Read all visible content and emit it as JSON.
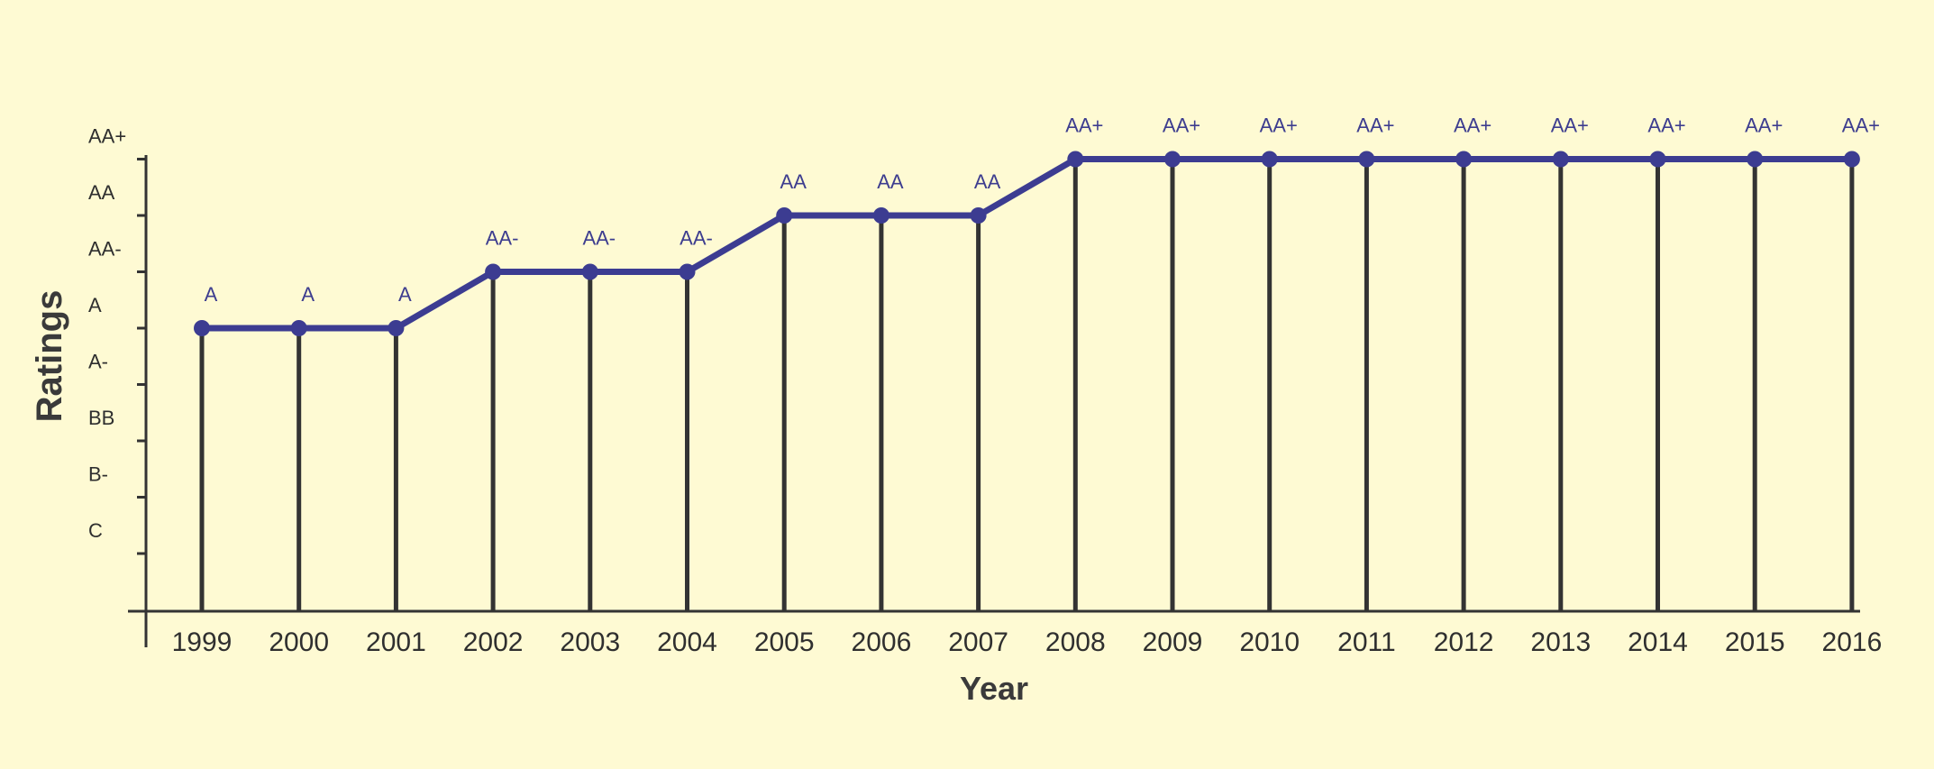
{
  "colors": {
    "background": "#fefad3",
    "series": "#3c3c91",
    "axis": "#333333",
    "stem": "#333333",
    "tick_text": "#2f2f2f",
    "data_label_text": "#3d3d8f"
  },
  "chart_data": {
    "type": "line",
    "title": "",
    "xlabel": "Year",
    "ylabel": "Ratings",
    "y_categories": [
      "C",
      "B-",
      "BB",
      "A-",
      "A",
      "AA-",
      "AA",
      "AA+"
    ],
    "x": [
      "1999",
      "2000",
      "2001",
      "2002",
      "2003",
      "2004",
      "2005",
      "2006",
      "2007",
      "2008",
      "2009",
      "2010",
      "2011",
      "2012",
      "2013",
      "2014",
      "2015",
      "2016"
    ],
    "series": [
      {
        "values": [
          "A",
          "A",
          "A",
          "AA-",
          "AA-",
          "AA-",
          "AA",
          "AA",
          "AA",
          "AA+",
          "AA+",
          "AA+",
          "AA+",
          "AA+",
          "AA+",
          "AA+",
          "AA+",
          "AA+"
        ]
      }
    ],
    "data_labels": [
      "A",
      "A",
      "A",
      "AA-",
      "AA-",
      "AA-",
      "AA",
      "AA",
      "AA",
      "AA+",
      "AA+",
      "AA+",
      "AA+",
      "AA+",
      "AA+",
      "AA+",
      "AA+",
      "AA+"
    ],
    "vertical_stems": true,
    "grid": false,
    "legend": "none"
  }
}
